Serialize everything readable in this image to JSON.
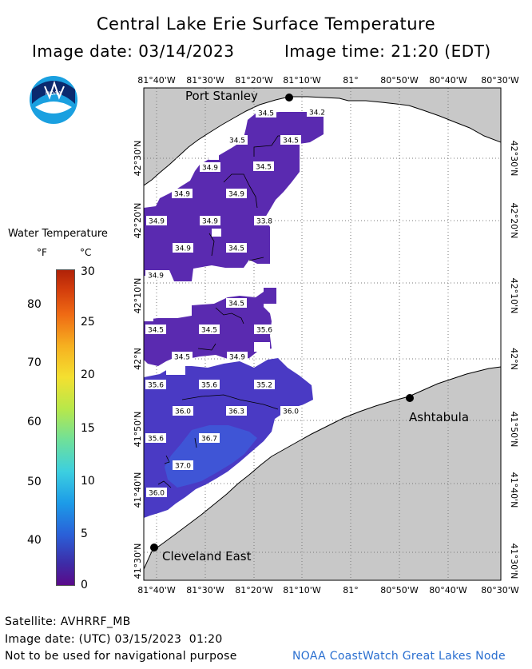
{
  "header": {
    "title": "Central Lake Erie Surface Temperature",
    "image_date": "Image date: 03/14/2023",
    "image_time": "Image time: 21:20 (EDT)"
  },
  "logo": {
    "text": "NOAA",
    "icon": "noaa-logo-icon"
  },
  "legend": {
    "title": "Water Temperature",
    "unit_f": "°F",
    "unit_c": "°C",
    "f_ticks": [
      "80",
      "70",
      "60",
      "50",
      "40"
    ],
    "c_ticks": [
      "30",
      "25",
      "20",
      "15",
      "10",
      "5",
      "0"
    ]
  },
  "map": {
    "top_lon_labels": [
      "81°40'W",
      "81°30'W",
      "81°20'W",
      "81°10'W",
      "81°",
      "80°50'W",
      "80°40'W",
      "80°30'W"
    ],
    "bottom_lon_labels": [
      "81°40'W",
      "81°30'W",
      "81°20'W",
      "81°10'W",
      "81°",
      "80°50'W",
      "80°40'W",
      "80°30'W"
    ],
    "lat_labels": [
      "42°30'N",
      "42°20'N",
      "42°10'N",
      "42°N",
      "41°50'N",
      "41°40'N",
      "41°30'N"
    ],
    "cities": [
      "Port Stanley",
      "Ashtabula",
      "Cleveland East"
    ],
    "temps": [
      "34.5",
      "34.2",
      "34.5",
      "34.5",
      "34.9",
      "34.5",
      "34.9",
      "34.9",
      "34.9",
      "34.9",
      "33.8",
      "34.9",
      "34.5",
      "34.9",
      "34.5",
      "34.5",
      "34.5",
      "35.6",
      "34.5",
      "34.9",
      "35.6",
      "35.6",
      "35.2",
      "36.0",
      "36.3",
      "36.0",
      "35.6",
      "36.7",
      "37.0",
      "36.0"
    ]
  },
  "footer": {
    "satellite": "Satellite: AVHRRF_MB",
    "utc_date": "Image date: (UTC) 03/15/2023  01:20",
    "disclaimer": "Not to be used for navigational purpose",
    "credit": "NOAA CoastWatch Great Lakes Node"
  }
}
